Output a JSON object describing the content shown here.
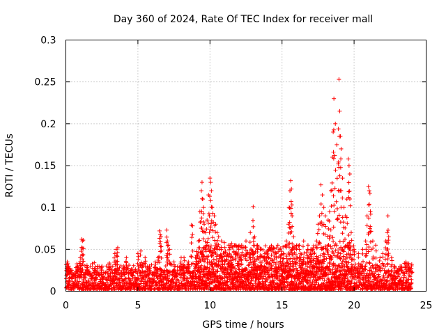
{
  "chart_data": {
    "type": "scatter",
    "title": "Day 360 of 2024, Rate Of TEC Index for receiver mall",
    "xlabel": "GPS time / hours",
    "ylabel": "ROTI / TECUs",
    "xlim": [
      0,
      25
    ],
    "ylim": [
      0,
      0.3
    ],
    "x_ticks": [
      0,
      5,
      10,
      15,
      20,
      25
    ],
    "y_ticks": [
      0,
      0.05,
      0.1,
      0.15,
      0.2,
      0.25,
      0.3
    ],
    "x_tick_labels": [
      "0",
      "5",
      "10",
      "15",
      "20",
      "25"
    ],
    "y_tick_labels": [
      "0",
      "0.05",
      "0.1",
      "0.15",
      "0.2",
      "0.25",
      "0.3"
    ],
    "grid": true,
    "marker": "+",
    "color": "#ff0000",
    "baseline_band": {
      "x_start": 0,
      "x_end": 24,
      "y_low": 0.002,
      "y_typical_high": 0.03
    },
    "series": [
      {
        "name": "ROTI",
        "points": [
          [
            0.1,
            0.035
          ],
          [
            0.2,
            0.03
          ],
          [
            0.3,
            0.025
          ],
          [
            0.5,
            0.02
          ],
          [
            0.8,
            0.03
          ],
          [
            1.0,
            0.04
          ],
          [
            1.1,
            0.062
          ],
          [
            1.15,
            0.06
          ],
          [
            1.2,
            0.061
          ],
          [
            1.5,
            0.028
          ],
          [
            2.0,
            0.025
          ],
          [
            2.5,
            0.03
          ],
          [
            3.0,
            0.032
          ],
          [
            3.4,
            0.045
          ],
          [
            3.5,
            0.05
          ],
          [
            3.6,
            0.052
          ],
          [
            4.0,
            0.03
          ],
          [
            4.2,
            0.04
          ],
          [
            4.5,
            0.025
          ],
          [
            5.0,
            0.045
          ],
          [
            5.2,
            0.048
          ],
          [
            5.5,
            0.04
          ],
          [
            5.8,
            0.03
          ],
          [
            6.2,
            0.035
          ],
          [
            6.4,
            0.04
          ],
          [
            6.5,
            0.072
          ],
          [
            6.55,
            0.068
          ],
          [
            6.6,
            0.065
          ],
          [
            7.0,
            0.073
          ],
          [
            7.05,
            0.06
          ],
          [
            7.1,
            0.055
          ],
          [
            7.2,
            0.05
          ],
          [
            7.5,
            0.035
          ],
          [
            8.0,
            0.04
          ],
          [
            8.2,
            0.04
          ],
          [
            8.5,
            0.035
          ],
          [
            8.7,
            0.079
          ],
          [
            8.8,
            0.078
          ],
          [
            9.0,
            0.04
          ],
          [
            9.2,
            0.06
          ],
          [
            9.3,
            0.095
          ],
          [
            9.4,
            0.12
          ],
          [
            9.45,
            0.13
          ],
          [
            9.5,
            0.11
          ],
          [
            9.55,
            0.1
          ],
          [
            9.6,
            0.08
          ],
          [
            9.7,
            0.07
          ],
          [
            9.8,
            0.085
          ],
          [
            9.9,
            0.115
          ],
          [
            10.0,
            0.135
          ],
          [
            10.05,
            0.13
          ],
          [
            10.1,
            0.12
          ],
          [
            10.15,
            0.1
          ],
          [
            10.2,
            0.093
          ],
          [
            10.3,
            0.09
          ],
          [
            10.4,
            0.08
          ],
          [
            10.5,
            0.07
          ],
          [
            10.6,
            0.065
          ],
          [
            10.8,
            0.06
          ],
          [
            11.0,
            0.058
          ],
          [
            11.3,
            0.055
          ],
          [
            11.5,
            0.057
          ],
          [
            11.8,
            0.055
          ],
          [
            12.0,
            0.05
          ],
          [
            12.2,
            0.055
          ],
          [
            12.5,
            0.06
          ],
          [
            12.8,
            0.07
          ],
          [
            13.0,
            0.101
          ],
          [
            13.0,
            0.077
          ],
          [
            13.1,
            0.065
          ],
          [
            13.3,
            0.055
          ],
          [
            13.5,
            0.05
          ],
          [
            13.8,
            0.045
          ],
          [
            14.0,
            0.048
          ],
          [
            14.3,
            0.05
          ],
          [
            14.6,
            0.045
          ],
          [
            14.9,
            0.04
          ],
          [
            15.1,
            0.045
          ],
          [
            15.3,
            0.06
          ],
          [
            15.45,
            0.08
          ],
          [
            15.5,
            0.1
          ],
          [
            15.55,
            0.12
          ],
          [
            15.6,
            0.132
          ],
          [
            15.65,
            0.122
          ],
          [
            15.7,
            0.09
          ],
          [
            15.8,
            0.065
          ],
          [
            16.0,
            0.05
          ],
          [
            16.2,
            0.055
          ],
          [
            16.5,
            0.06
          ],
          [
            16.8,
            0.055
          ],
          [
            17.0,
            0.05
          ],
          [
            17.2,
            0.045
          ],
          [
            17.4,
            0.06
          ],
          [
            17.5,
            0.08
          ],
          [
            17.6,
            0.09
          ],
          [
            17.7,
            0.127
          ],
          [
            17.8,
            0.115
          ],
          [
            17.9,
            0.1
          ],
          [
            18.0,
            0.09
          ],
          [
            18.2,
            0.085
          ],
          [
            18.3,
            0.095
          ],
          [
            18.4,
            0.12
          ],
          [
            18.5,
            0.16
          ],
          [
            18.55,
            0.19
          ],
          [
            18.6,
            0.23
          ],
          [
            18.7,
            0.2
          ],
          [
            18.8,
            0.175
          ],
          [
            18.9,
            0.152
          ],
          [
            18.95,
            0.253
          ],
          [
            19.0,
            0.215
          ],
          [
            19.05,
            0.185
          ],
          [
            19.1,
            0.17
          ],
          [
            19.2,
            0.135
          ],
          [
            19.3,
            0.1
          ],
          [
            19.4,
            0.09
          ],
          [
            19.5,
            0.11
          ],
          [
            19.6,
            0.158
          ],
          [
            19.65,
            0.15
          ],
          [
            19.7,
            0.14
          ],
          [
            19.8,
            0.07
          ],
          [
            20.0,
            0.05
          ],
          [
            20.3,
            0.045
          ],
          [
            20.6,
            0.05
          ],
          [
            20.8,
            0.06
          ],
          [
            20.9,
            0.09
          ],
          [
            21.0,
            0.125
          ],
          [
            21.05,
            0.12
          ],
          [
            21.1,
            0.117
          ],
          [
            21.15,
            0.092
          ],
          [
            21.3,
            0.06
          ],
          [
            21.5,
            0.055
          ],
          [
            21.8,
            0.04
          ],
          [
            22.0,
            0.045
          ],
          [
            22.2,
            0.06
          ],
          [
            22.3,
            0.07
          ],
          [
            22.35,
            0.09
          ],
          [
            22.4,
            0.065
          ],
          [
            22.6,
            0.04
          ],
          [
            22.8,
            0.03
          ],
          [
            23.0,
            0.025
          ],
          [
            23.3,
            0.03
          ],
          [
            23.6,
            0.035
          ],
          [
            23.8,
            0.033
          ],
          [
            24.0,
            0.032
          ]
        ]
      }
    ]
  }
}
